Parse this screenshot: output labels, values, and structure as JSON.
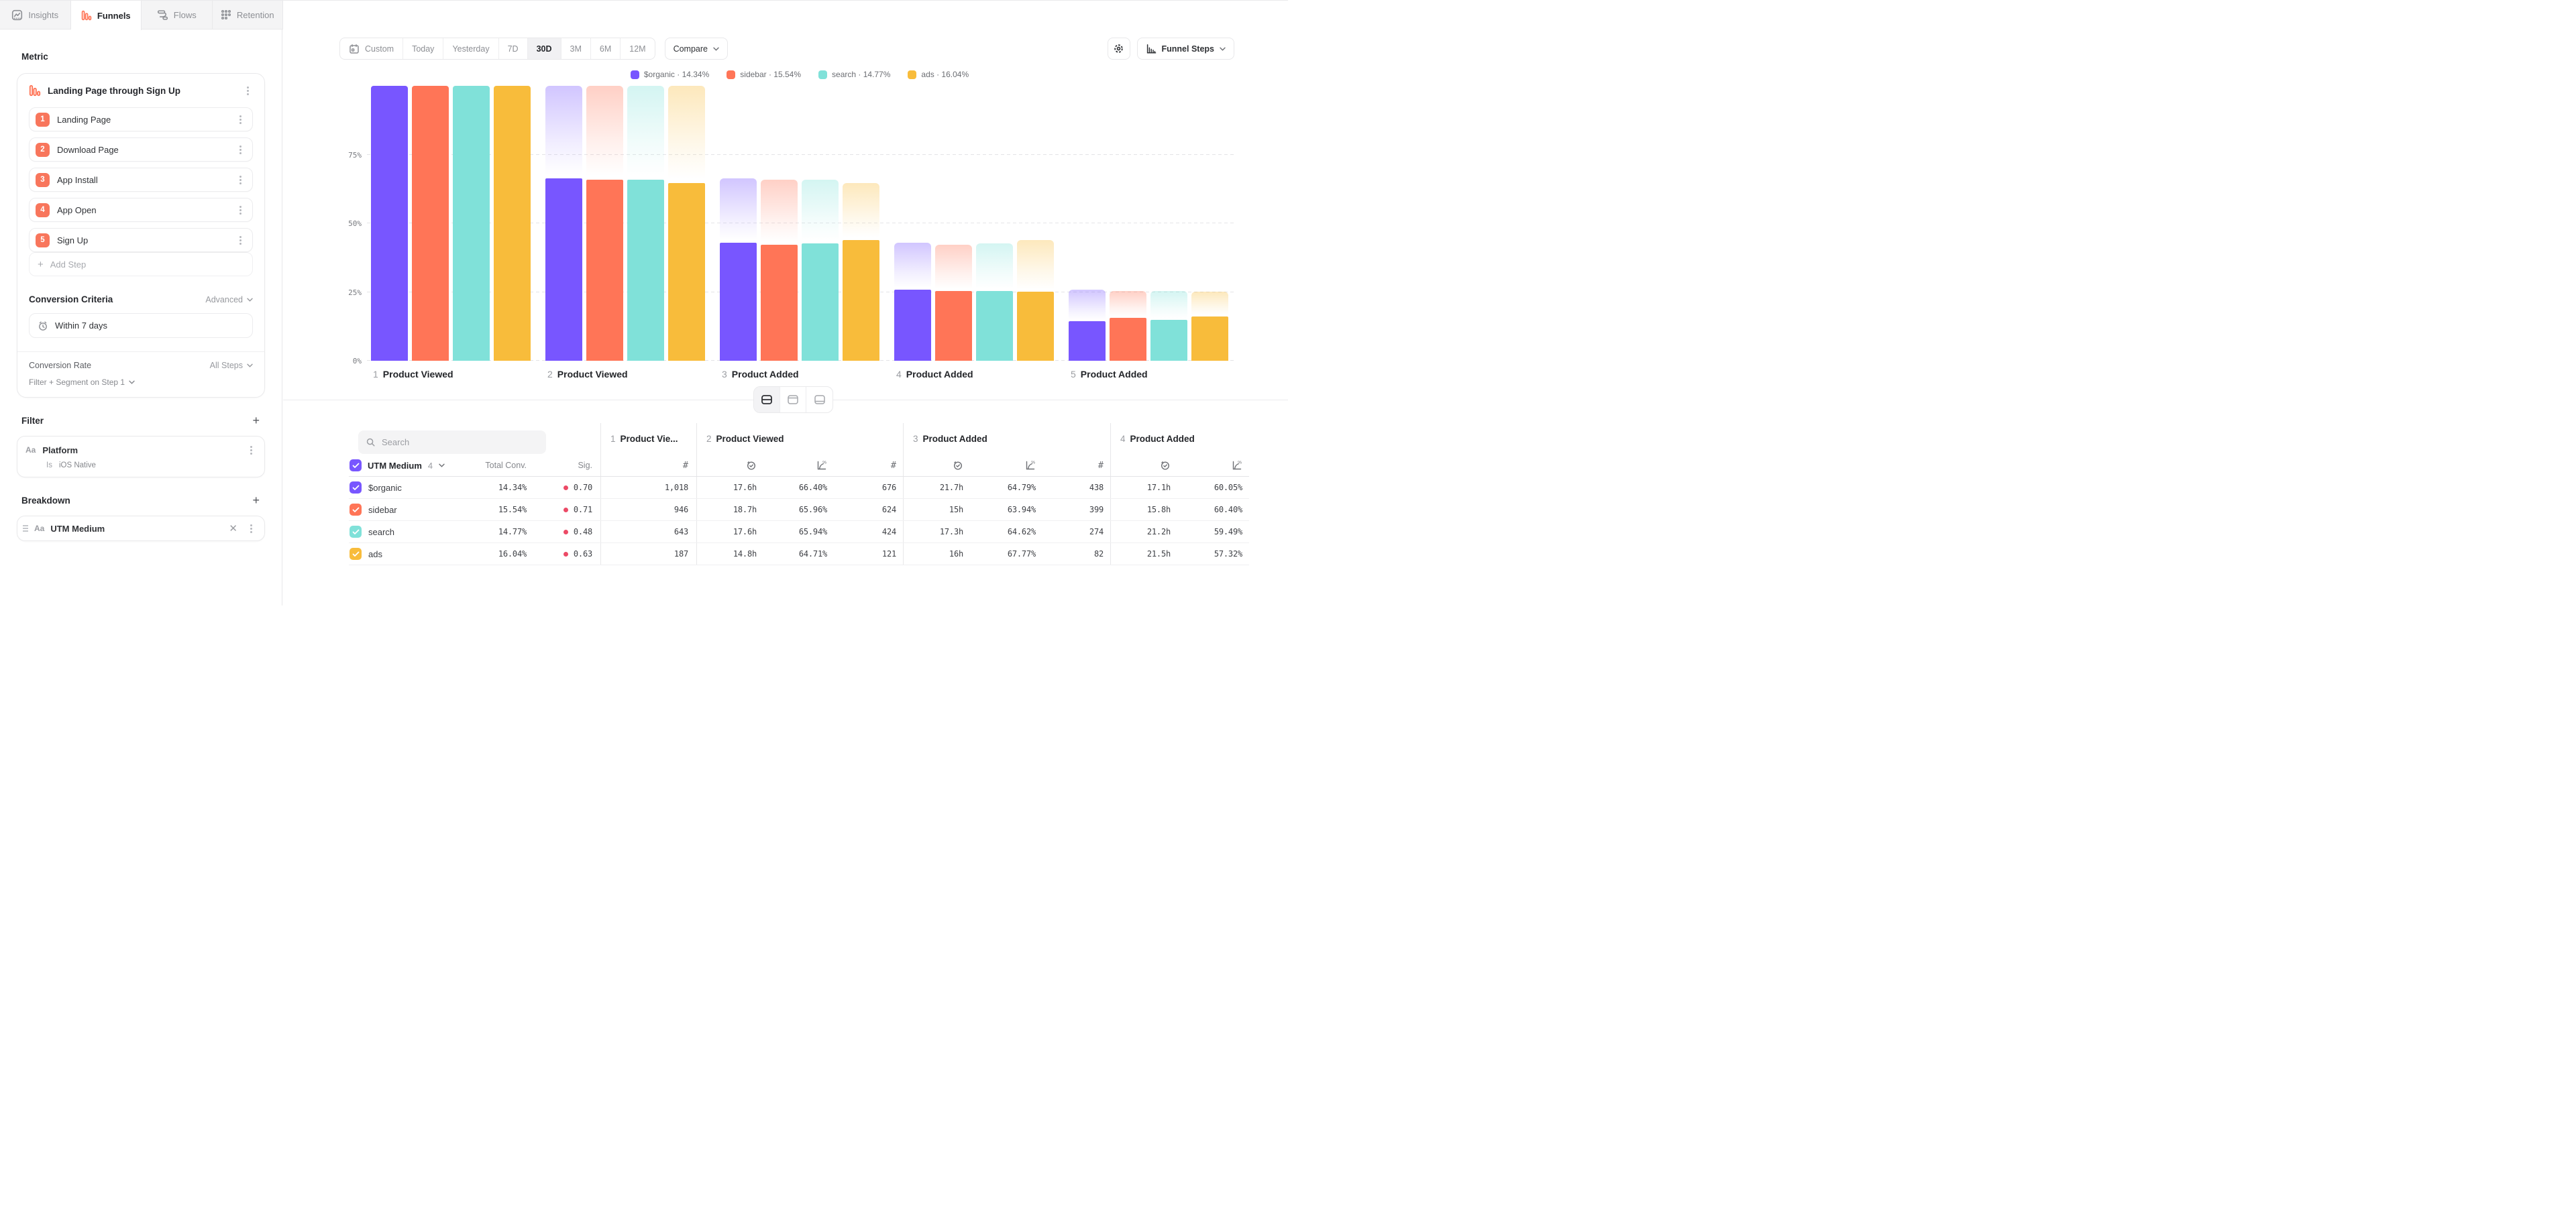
{
  "tabs": [
    {
      "label": "Insights",
      "active": false
    },
    {
      "label": "Funnels",
      "active": true
    },
    {
      "label": "Flows",
      "active": false
    },
    {
      "label": "Retention",
      "active": false
    }
  ],
  "sidebar": {
    "metric_label": "Metric",
    "metric_title": "Landing Page through Sign Up",
    "steps": [
      {
        "num": "1",
        "label": "Landing Page"
      },
      {
        "num": "2",
        "label": "Download Page"
      },
      {
        "num": "3",
        "label": "App Install"
      },
      {
        "num": "4",
        "label": "App Open"
      },
      {
        "num": "5",
        "label": "Sign Up"
      }
    ],
    "add_step_label": "Add Step",
    "conversion_criteria_label": "Conversion Criteria",
    "advanced_label": "Advanced",
    "window_label": "Within 7 days",
    "conversion_rate_label": "Conversion Rate",
    "conversion_rate_value": "All Steps",
    "filter_segment_label": "Filter + Segment on Step 1",
    "filter_label": "Filter",
    "filter_item": {
      "type_icon": "Aa",
      "name": "Platform",
      "operator": "Is",
      "value": "iOS Native"
    },
    "breakdown_label": "Breakdown",
    "breakdown_item": {
      "type_icon": "Aa",
      "name": "UTM Medium"
    }
  },
  "toolbar": {
    "date_ranges": [
      "Custom",
      "Today",
      "Yesterday",
      "7D",
      "30D",
      "3M",
      "6M",
      "12M"
    ],
    "active_range": "30D",
    "compare_label": "Compare",
    "view_label": "Funnel Steps"
  },
  "colors": {
    "accent": "#FF7557",
    "purple": "#7856FF",
    "coral": "#FF7557",
    "teal": "#80E1D9",
    "amber": "#F8BC3B",
    "sig_dot": "#EC4A66",
    "step_badge": "#F8765C"
  },
  "chart_data": {
    "type": "bar",
    "title": "",
    "categories": [
      "1 Product Viewed",
      "2 Product Viewed",
      "3 Product Added",
      "4 Product Added",
      "5 Product Added"
    ],
    "yticks": [
      {
        "label": "75%",
        "value": 75
      },
      {
        "label": "50%",
        "value": 50
      },
      {
        "label": "25%",
        "value": 25
      },
      {
        "label": "0%",
        "value": 0
      }
    ],
    "ylim": [
      0,
      100
    ],
    "grid": "horizontal dashed",
    "legend_position": "top",
    "bar_style": "solid bar = % converted to this step; faded gradient ghost above = previous step level",
    "series": [
      {
        "name": "$organic",
        "color": "#7856FF",
        "overall": "14.34%",
        "values": [
          100,
          66.4,
          43.02,
          25.84,
          14.34
        ]
      },
      {
        "name": "sidebar",
        "color": "#FF7557",
        "overall": "15.54%",
        "values": [
          100,
          65.96,
          42.18,
          25.48,
          15.54
        ]
      },
      {
        "name": "search",
        "color": "#80E1D9",
        "overall": "14.77%",
        "values": [
          100,
          65.94,
          42.61,
          25.35,
          14.77
        ]
      },
      {
        "name": "ads",
        "color": "#F8BC3B",
        "overall": "16.04%",
        "values": [
          100,
          64.71,
          43.85,
          25.14,
          16.04
        ]
      }
    ]
  },
  "legend": [
    {
      "name": "$organic",
      "pct": "14.34%",
      "color": "#7856FF"
    },
    {
      "name": "sidebar",
      "pct": "15.54%",
      "color": "#FF7557"
    },
    {
      "name": "search",
      "pct": "14.77%",
      "color": "#80E1D9"
    },
    {
      "name": "ads",
      "pct": "16.04%",
      "color": "#F8BC3B"
    }
  ],
  "table": {
    "search_placeholder": "Search",
    "breakdown_header": {
      "label": "UTM Medium",
      "count": "4"
    },
    "total_conv_label": "Total Conv.",
    "sig_label": "Sig.",
    "groups": [
      {
        "title": "1 Product Vie...",
        "cols": [
          "count"
        ]
      },
      {
        "title": "2 Product Viewed",
        "cols": [
          "time",
          "conv",
          "count"
        ]
      },
      {
        "title": "3 Product Added",
        "cols": [
          "time",
          "conv",
          "count"
        ]
      },
      {
        "title": "4 Product Added",
        "cols": [
          "time",
          "conv"
        ]
      }
    ],
    "rows": [
      {
        "name": "$organic",
        "color": "#7856FF",
        "total_conv": "14.34%",
        "sig": "0.70",
        "cells": [
          "1,018",
          "17.6h",
          "66.40%",
          "676",
          "21.7h",
          "64.79%",
          "438",
          "17.1h",
          "60.05%"
        ]
      },
      {
        "name": "sidebar",
        "color": "#FF7557",
        "total_conv": "15.54%",
        "sig": "0.71",
        "cells": [
          "946",
          "18.7h",
          "65.96%",
          "624",
          "15h",
          "63.94%",
          "399",
          "15.8h",
          "60.40%"
        ]
      },
      {
        "name": "search",
        "color": "#80E1D9",
        "total_conv": "14.77%",
        "sig": "0.48",
        "cells": [
          "643",
          "17.6h",
          "65.94%",
          "424",
          "17.3h",
          "64.62%",
          "274",
          "21.2h",
          "59.49%"
        ]
      },
      {
        "name": "ads",
        "color": "#F8BC3B",
        "total_conv": "16.04%",
        "sig": "0.63",
        "cells": [
          "187",
          "14.8h",
          "64.71%",
          "121",
          "16h",
          "67.77%",
          "82",
          "21.5h",
          "57.32%"
        ]
      }
    ]
  },
  "view_toggle": {
    "options": [
      "split-view",
      "chart-only",
      "table-only"
    ],
    "active": "split-view"
  }
}
